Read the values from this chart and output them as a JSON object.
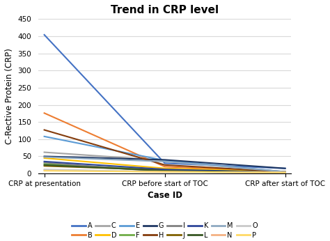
{
  "title": "Trend in CRP level",
  "xlabel": "Case ID",
  "ylabel": "C-Rective Protein (CRP)",
  "x_labels": [
    "CRP at presentation",
    "CRP before start of TOC",
    "CRP after start of TOC"
  ],
  "ylim": [
    0,
    450
  ],
  "yticks": [
    0,
    50,
    100,
    150,
    200,
    250,
    300,
    350,
    400,
    450
  ],
  "series": [
    {
      "label": "A",
      "color": "#4472C4",
      "values": [
        404,
        30,
        15
      ]
    },
    {
      "label": "B",
      "color": "#ED7D31",
      "values": [
        176,
        20,
        5
      ]
    },
    {
      "label": "C",
      "color": "#A5A5A5",
      "values": [
        62,
        38,
        5
      ]
    },
    {
      "label": "D",
      "color": "#FFC000",
      "values": [
        45,
        15,
        5
      ]
    },
    {
      "label": "E",
      "color": "#5B9BD5",
      "values": [
        108,
        38,
        5
      ]
    },
    {
      "label": "F",
      "color": "#70AD47",
      "values": [
        28,
        10,
        3
      ]
    },
    {
      "label": "G",
      "color": "#1F3864",
      "values": [
        50,
        40,
        15
      ]
    },
    {
      "label": "H",
      "color": "#843C0C",
      "values": [
        127,
        25,
        5
      ]
    },
    {
      "label": "I",
      "color": "#808080",
      "values": [
        32,
        5,
        3
      ]
    },
    {
      "label": "J",
      "color": "#806000",
      "values": [
        22,
        10,
        3
      ]
    },
    {
      "label": "K",
      "color": "#2E4699",
      "values": [
        35,
        12,
        3
      ]
    },
    {
      "label": "L",
      "color": "#375623",
      "values": [
        25,
        8,
        3
      ]
    },
    {
      "label": "M",
      "color": "#8EA9C1",
      "values": [
        48,
        35,
        5
      ]
    },
    {
      "label": "N",
      "color": "#F4B183",
      "values": [
        10,
        5,
        3
      ]
    },
    {
      "label": "O",
      "color": "#C9C9C9",
      "values": [
        12,
        5,
        3
      ]
    },
    {
      "label": "P",
      "color": "#FFD966",
      "values": [
        8,
        5,
        3
      ]
    }
  ],
  "background_color": "#FFFFFF",
  "grid_color": "#D9D9D9",
  "title_fontsize": 11,
  "axis_label_fontsize": 8.5,
  "tick_fontsize": 7.5,
  "legend_fontsize": 7
}
